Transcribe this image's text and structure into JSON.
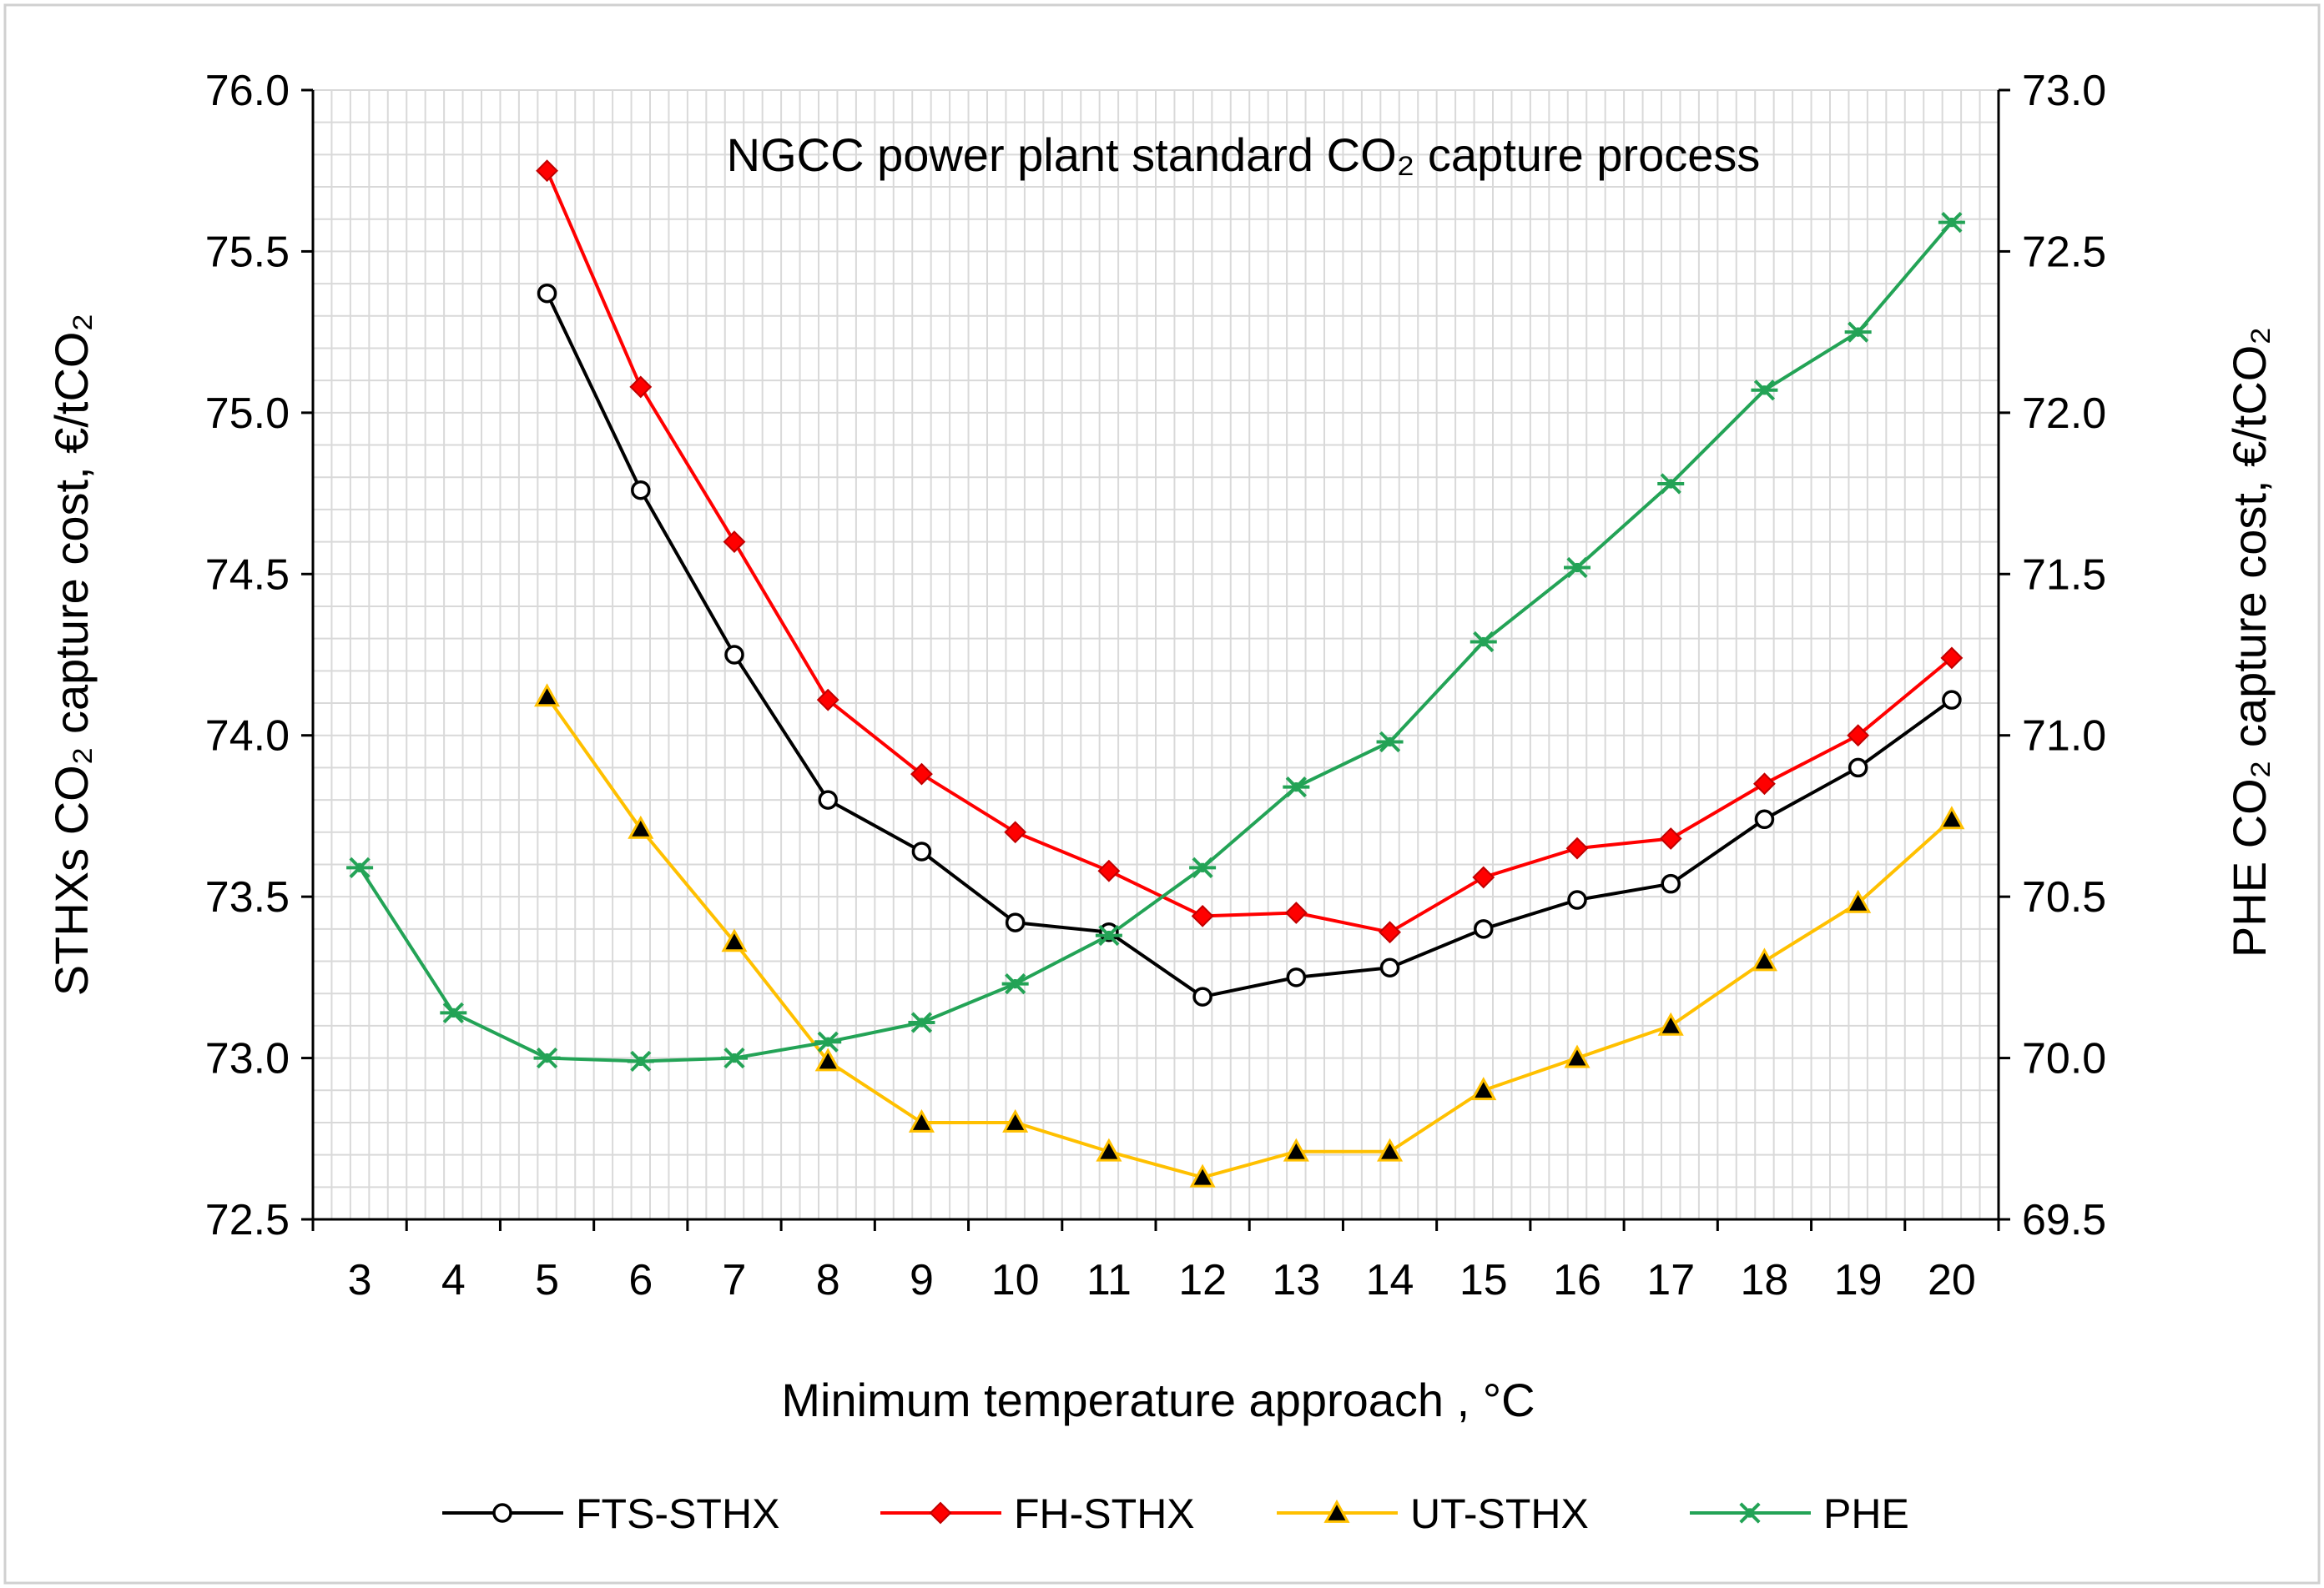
{
  "chart_data": {
    "type": "line",
    "title": "NGCC power plant standard CO₂ capture process",
    "xlabel": "Minimum temperature approach , °C",
    "ylabel_left": "STHXs CO₂ capture cost, €/tCO₂",
    "ylabel_right": "PHE CO₂ capture cost, €/tCO₂",
    "x_categories": [
      3,
      4,
      5,
      6,
      7,
      8,
      9,
      10,
      11,
      12,
      13,
      14,
      15,
      16,
      17,
      18,
      19,
      20
    ],
    "ylim_left": [
      72.5,
      76.0
    ],
    "ylim_right": [
      69.5,
      73.0
    ],
    "yticks_left": [
      "72.5",
      "73.0",
      "73.5",
      "74.0",
      "74.5",
      "75.0",
      "75.5",
      "76.0"
    ],
    "yticks_right": [
      "69.5",
      "70.0",
      "70.5",
      "71.0",
      "71.5",
      "72.0",
      "72.5",
      "73.0"
    ],
    "grid": true,
    "legend_position": "bottom",
    "series": [
      {
        "name": "FTS-STHX",
        "axis": "left",
        "color": "#000000",
        "marker": "circle-open",
        "x": [
          5,
          6,
          7,
          8,
          9,
          10,
          11,
          12,
          13,
          14,
          15,
          16,
          17,
          18,
          19,
          20
        ],
        "values": [
          75.37,
          74.76,
          74.25,
          73.8,
          73.64,
          73.42,
          73.39,
          73.19,
          73.25,
          73.28,
          73.4,
          73.49,
          73.54,
          73.74,
          73.9,
          74.11
        ]
      },
      {
        "name": "FH-STHX",
        "axis": "left",
        "color": "#ff0000",
        "marker": "diamond",
        "x": [
          5,
          6,
          7,
          8,
          9,
          10,
          11,
          12,
          13,
          14,
          15,
          16,
          17,
          18,
          19,
          20
        ],
        "values": [
          75.75,
          75.08,
          74.6,
          74.11,
          73.88,
          73.7,
          73.58,
          73.44,
          73.45,
          73.39,
          73.56,
          73.65,
          73.68,
          73.85,
          74.0,
          74.24
        ]
      },
      {
        "name": "UT-STHX",
        "axis": "left",
        "color": "#ffc000",
        "marker": "triangle",
        "x": [
          5,
          6,
          7,
          8,
          9,
          10,
          11,
          12,
          13,
          14,
          15,
          16,
          17,
          18,
          19,
          20
        ],
        "values": [
          74.12,
          73.71,
          73.36,
          72.99,
          72.8,
          72.8,
          72.71,
          72.63,
          72.71,
          72.71,
          72.9,
          73.0,
          73.1,
          73.3,
          73.48,
          73.74
        ]
      },
      {
        "name": "PHE",
        "axis": "right",
        "color": "#23a356",
        "marker": "asterisk",
        "x": [
          3,
          4,
          5,
          6,
          7,
          8,
          9,
          10,
          11,
          12,
          13,
          14,
          15,
          16,
          17,
          18,
          19,
          20
        ],
        "values": [
          70.59,
          70.14,
          70.0,
          69.99,
          70.0,
          70.05,
          70.11,
          70.23,
          70.38,
          70.59,
          70.84,
          70.98,
          71.29,
          71.52,
          71.78,
          72.07,
          72.25,
          72.59
        ]
      }
    ]
  }
}
